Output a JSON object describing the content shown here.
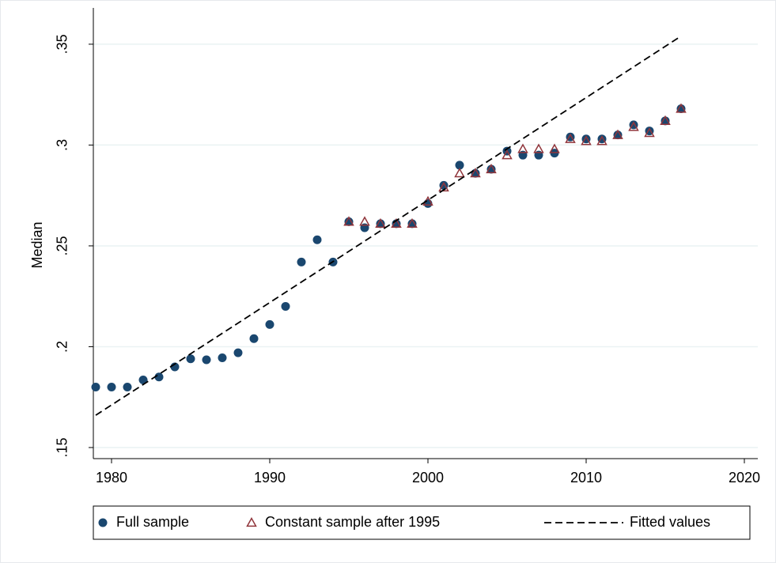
{
  "chart_data": {
    "type": "scatter",
    "y_label": "Median",
    "xlim": [
      1978.85,
      2020.85
    ],
    "xticks": [
      1980,
      1990,
      2000,
      2010,
      2020
    ],
    "ylim": [
      0.1445,
      0.368
    ],
    "yticks": [
      {
        "value": 0.15,
        "label": ".15"
      },
      {
        "value": 0.2,
        "label": ".2"
      },
      {
        "value": 0.25,
        "label": ".25"
      },
      {
        "value": 0.3,
        "label": ".3"
      },
      {
        "value": 0.35,
        "label": ".35"
      }
    ],
    "grid": true,
    "legend": "bottom",
    "series": [
      {
        "name": "Full sample",
        "color": "#1a476f",
        "marker": "circle",
        "x": [
          1979,
          1980,
          1981,
          1982,
          1983,
          1984,
          1985,
          1986,
          1987,
          1988,
          1989,
          1990,
          1991,
          1992,
          1993,
          1994,
          1995,
          1996,
          1997,
          1998,
          1999,
          2000,
          2001,
          2002,
          2003,
          2004,
          2005,
          2006,
          2007,
          2008,
          2009,
          2010,
          2011,
          2012,
          2013,
          2014,
          2015,
          2016
        ],
        "values": [
          0.18,
          0.18,
          0.18,
          0.1835,
          0.185,
          0.19,
          0.194,
          0.1935,
          0.1945,
          0.197,
          0.204,
          0.211,
          0.22,
          0.242,
          0.253,
          0.242,
          0.262,
          0.259,
          0.261,
          0.261,
          0.261,
          0.271,
          0.28,
          0.29,
          0.286,
          0.288,
          0.297,
          0.295,
          0.295,
          0.296,
          0.304,
          0.303,
          0.303,
          0.305,
          0.31,
          0.307,
          0.312,
          0.318
        ]
      },
      {
        "name": "Constant sample after 1995",
        "color": "#90353b",
        "marker": "triangle",
        "x": [
          1995,
          1996,
          1997,
          1998,
          1999,
          2000,
          2001,
          2002,
          2003,
          2004,
          2005,
          2006,
          2007,
          2008,
          2009,
          2010,
          2011,
          2012,
          2013,
          2014,
          2015,
          2016
        ],
        "values": [
          0.262,
          0.262,
          0.261,
          0.261,
          0.261,
          0.272,
          0.279,
          0.286,
          0.286,
          0.288,
          0.295,
          0.298,
          0.298,
          0.298,
          0.303,
          0.302,
          0.302,
          0.305,
          0.309,
          0.306,
          0.312,
          0.318
        ]
      },
      {
        "name": "Fitted values",
        "color": "#000000",
        "marker": "dashed-line",
        "x": [
          1979,
          2016
        ],
        "values": [
          0.166,
          0.354
        ]
      }
    ]
  }
}
